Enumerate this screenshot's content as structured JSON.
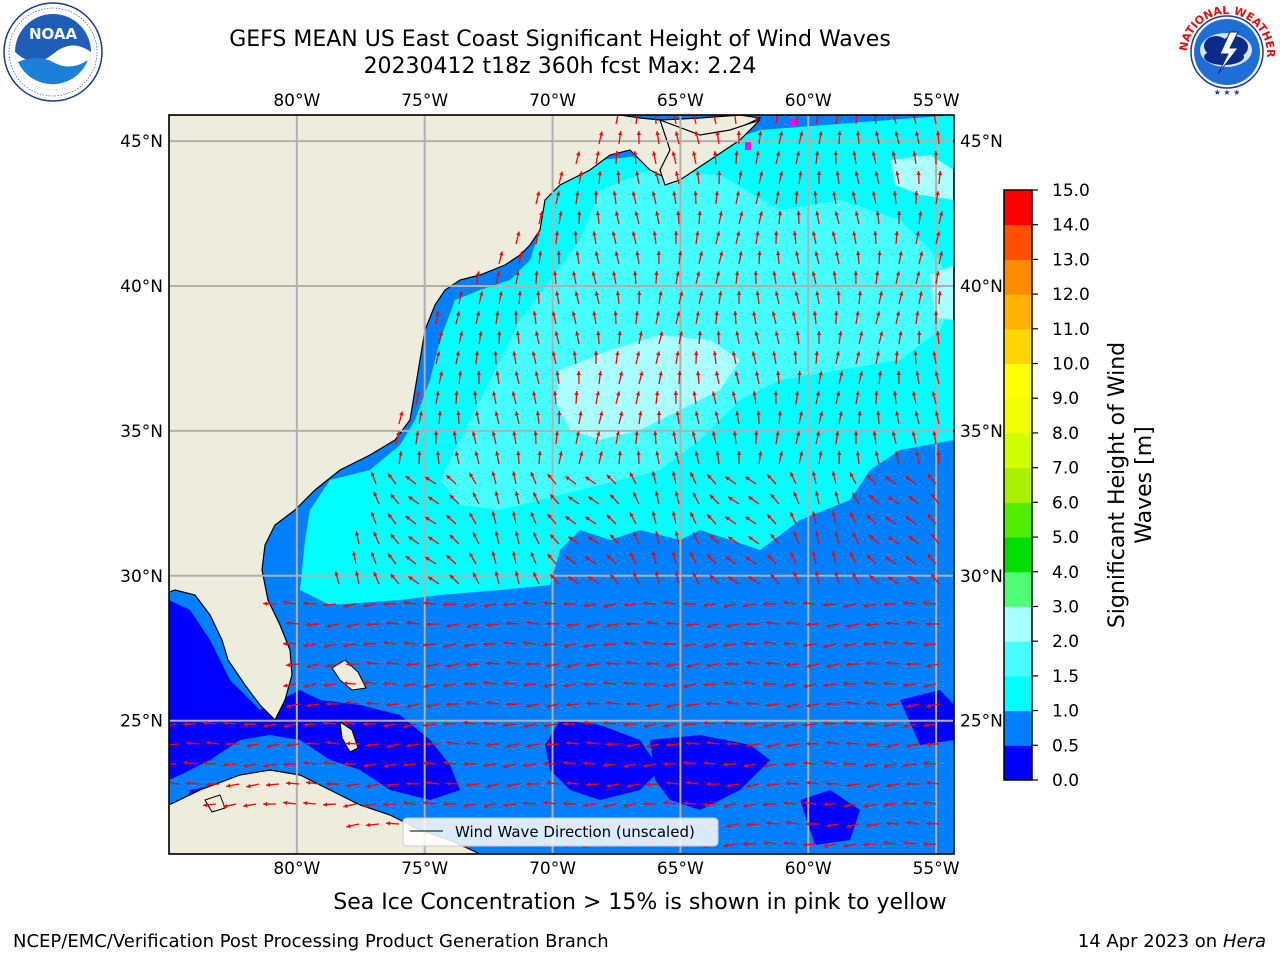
{
  "header": {
    "title_line1": "GEFS MEAN US East Coast Significant Height of Wind Waves",
    "title_line2": "20230412 t18z 360h fcst   Max: 2.24"
  },
  "logos": {
    "left": {
      "name": "NOAA",
      "icon": "noaa-logo-icon",
      "text": "NOAA",
      "ring_text": "NATIONAL OCEANIC AND ATMOSPHERIC ADMINISTRATION · U.S. DEPARTMENT OF COMMERCE"
    },
    "right": {
      "name": "National Weather Service",
      "icon": "nws-logo-icon",
      "ring_text": "NATIONAL WEATHER SERVICE"
    }
  },
  "map": {
    "projection": "lat-lon",
    "lon_range": [
      -85,
      -54.3
    ],
    "lat_range": [
      20.4,
      45.9
    ],
    "lon_ticks": [
      {
        "value": -80,
        "label": "80°W"
      },
      {
        "value": -75,
        "label": "75°W"
      },
      {
        "value": -70,
        "label": "70°W"
      },
      {
        "value": -65,
        "label": "65°W"
      },
      {
        "value": -60,
        "label": "60°W"
      },
      {
        "value": -55,
        "label": "55°W"
      }
    ],
    "lat_ticks": [
      {
        "value": 45,
        "label": "45°N"
      },
      {
        "value": 40,
        "label": "40°N"
      },
      {
        "value": 35,
        "label": "35°N"
      },
      {
        "value": 30,
        "label": "30°N"
      },
      {
        "value": 25,
        "label": "25°N"
      }
    ],
    "gridlines": true,
    "land_color": "#eeecdc",
    "coast_color": "#000000",
    "arrow_color": "#ff0000",
    "legend": {
      "label": "Wind Wave Direction (unscaled)",
      "placement": "lower-center"
    }
  },
  "colorbar": {
    "label_line1": "Significant Height of Wind",
    "label_line2": "Waves [m]",
    "levels": [
      "0.0",
      "0.5",
      "1.0",
      "1.5",
      "2.0",
      "3.0",
      "4.0",
      "5.0",
      "6.0",
      "7.0",
      "8.0",
      "9.0",
      "10.0",
      "11.0",
      "12.0",
      "13.0",
      "14.0",
      "15.0"
    ],
    "colors": [
      "#0000ff",
      "#0080ff",
      "#00ffff",
      "#45ffff",
      "#aaffff",
      "#50ff78",
      "#00dd00",
      "#52ee00",
      "#aaee00",
      "#d0ff00",
      "#f0ff00",
      "#ffff00",
      "#ffd700",
      "#ffb000",
      "#ff8c00",
      "#ff5000",
      "#ff0000"
    ]
  },
  "caption": "Sea Ice Concentration > 15% is shown in pink to yellow",
  "footer": {
    "left": "NCEP/EMC/Verification Post Processing Product Generation Branch",
    "right_prefix": "14 Apr 2023 on ",
    "right_machine": "Hera"
  }
}
